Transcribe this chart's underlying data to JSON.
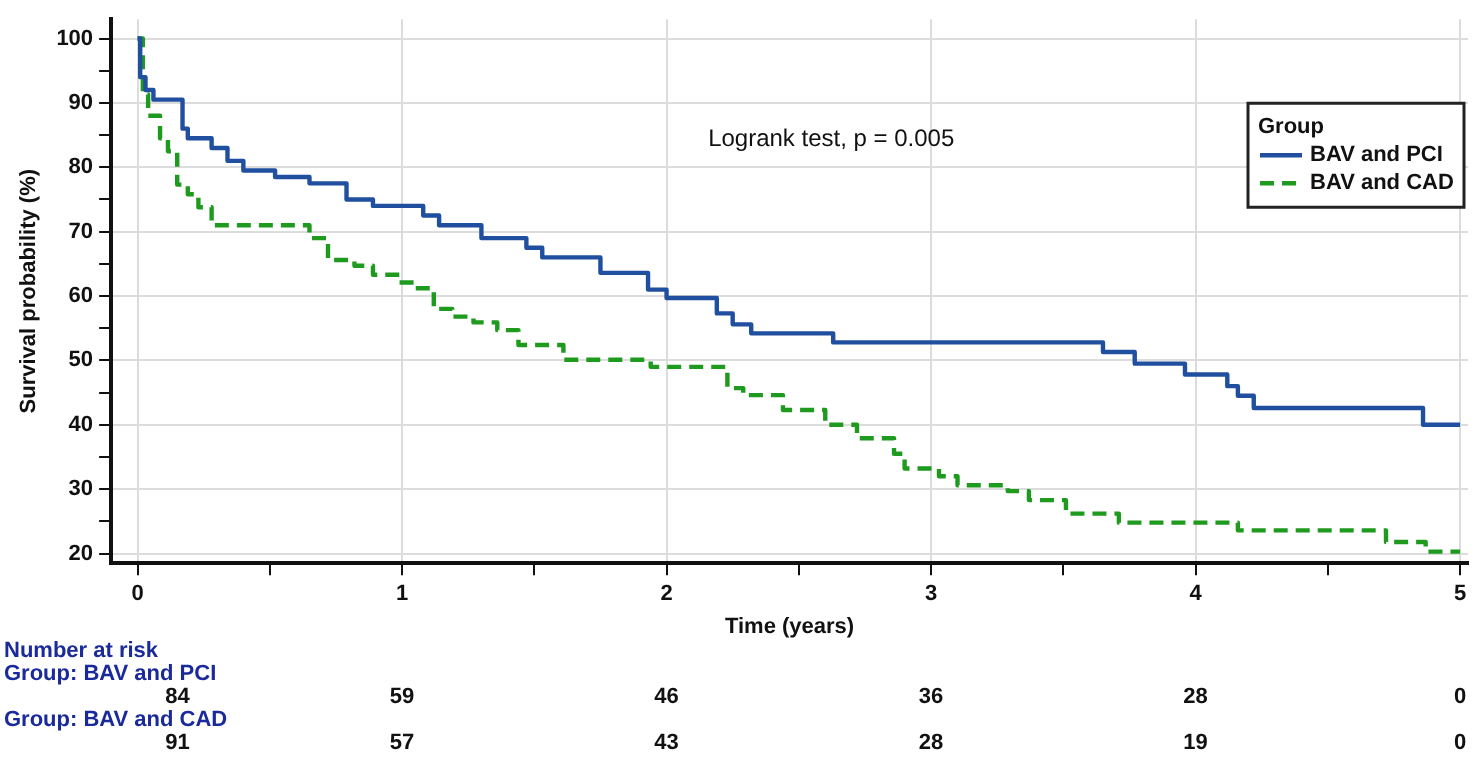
{
  "chart_data": {
    "type": "step",
    "xlabel": "Time (years)",
    "ylabel": "Survival probability (%)",
    "legend_title": "Group",
    "legend": "top right",
    "grid": true,
    "xlim": [
      -0.1,
      5.03
    ],
    "ylim": [
      18.5,
      103
    ],
    "xticks": [
      0,
      {
        "value": 0.5,
        "label": null
      },
      1,
      {
        "value": 1.5,
        "label": null
      },
      2,
      {
        "value": 2.5,
        "label": null
      },
      3,
      {
        "value": 3.5,
        "label": null
      },
      4,
      {
        "value": 4.5,
        "label": null
      },
      5
    ],
    "yticks": [
      20,
      {
        "value": 25,
        "label": null
      },
      30,
      {
        "value": 35,
        "label": null
      },
      40,
      {
        "value": 45,
        "label": null
      },
      50,
      {
        "value": 55,
        "label": null
      },
      60,
      {
        "value": 65,
        "label": null
      },
      70,
      {
        "value": 75,
        "label": null
      },
      80,
      {
        "value": 85,
        "label": null
      },
      90,
      {
        "value": 95,
        "label": null
      },
      100
    ],
    "series": [
      {
        "name": "BAV and PCI",
        "color": "#1f4f9e",
        "line_style": "solid",
        "x": [
          0,
          0.01,
          0.03,
          0.06,
          0.17,
          0.19,
          0.28,
          0.34,
          0.4,
          0.52,
          0.65,
          0.79,
          0.89,
          1.08,
          1.14,
          1.3,
          1.47,
          1.53,
          1.75,
          1.93,
          2.0,
          2.19,
          2.25,
          2.32,
          2.63,
          3.65,
          3.77,
          3.96,
          4.12,
          4.16,
          4.22,
          4.86,
          5
        ],
        "values": [
          100,
          94,
          92,
          90.5,
          86,
          84.5,
          83,
          81,
          79.5,
          78.5,
          77.5,
          75,
          74,
          72.5,
          71,
          69,
          67.5,
          66,
          63.6,
          61,
          59.7,
          57.3,
          55.6,
          54.2,
          52.8,
          51.3,
          49.5,
          47.8,
          46,
          44.5,
          42.6,
          40,
          40
        ]
      },
      {
        "name": "BAV and CAD",
        "color": "#1e9a1e",
        "line_style": "dashed",
        "x": [
          0,
          0.02,
          0.04,
          0.085,
          0.115,
          0.15,
          0.19,
          0.23,
          0.28,
          0.65,
          0.72,
          0.82,
          0.89,
          0.99,
          1.05,
          1.12,
          1.19,
          1.27,
          1.36,
          1.44,
          1.61,
          1.94,
          2.23,
          2.29,
          2.44,
          2.6,
          2.72,
          2.86,
          2.9,
          3.03,
          3.1,
          3.29,
          3.37,
          3.51,
          3.71,
          4.16,
          4.72,
          4.87,
          5
        ],
        "values": [
          100,
          91.3,
          88,
          84.5,
          82.5,
          77.3,
          75.8,
          73.8,
          71,
          69,
          65.6,
          64.7,
          63.3,
          62.1,
          61.2,
          58,
          56.8,
          55.9,
          54.7,
          52.4,
          50.1,
          49,
          45.7,
          44.6,
          42.3,
          40,
          37.9,
          35.5,
          33.2,
          32,
          30.6,
          29.7,
          28.3,
          26.2,
          24.8,
          23.6,
          21.8,
          20.3,
          20.3
        ]
      }
    ],
    "annotations": [
      "Logrank test, p = 0.005",
      "Number at risk",
      "Group: BAV and PCI",
      "84",
      "59",
      "46",
      "36",
      "28",
      "0",
      "Group: BAV and CAD",
      "91",
      "57",
      "43",
      "28",
      "19",
      "0"
    ]
  }
}
